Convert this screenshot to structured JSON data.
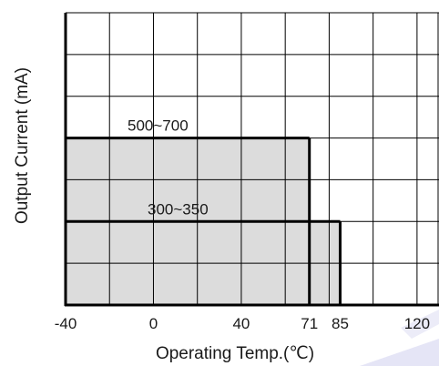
{
  "chart_data": {
    "type": "area",
    "title": "",
    "xlabel": "Operating Temp.(℃)",
    "ylabel": "Output Current (mA)",
    "x_ticks": [
      -40,
      0,
      40,
      71,
      85,
      120
    ],
    "x_tick_labels": [
      "-40",
      "0",
      "40",
      "71",
      "85",
      "120"
    ],
    "xlim": [
      -40,
      130
    ],
    "grid": true,
    "y_ticks_shown": false,
    "series": [
      {
        "name": "500~700",
        "x_range": [
          -40,
          71
        ],
        "level": "upper",
        "annotation": "500~700"
      },
      {
        "name": "300~350",
        "x_range": [
          -40,
          85
        ],
        "level": "lower",
        "annotation": "300~350"
      }
    ],
    "reference_line": {
      "x": 71,
      "style": "dashed"
    }
  },
  "colors": {
    "fill": "#dcdcdc",
    "grid": "#000000",
    "watermark": "#c9c9ee"
  }
}
